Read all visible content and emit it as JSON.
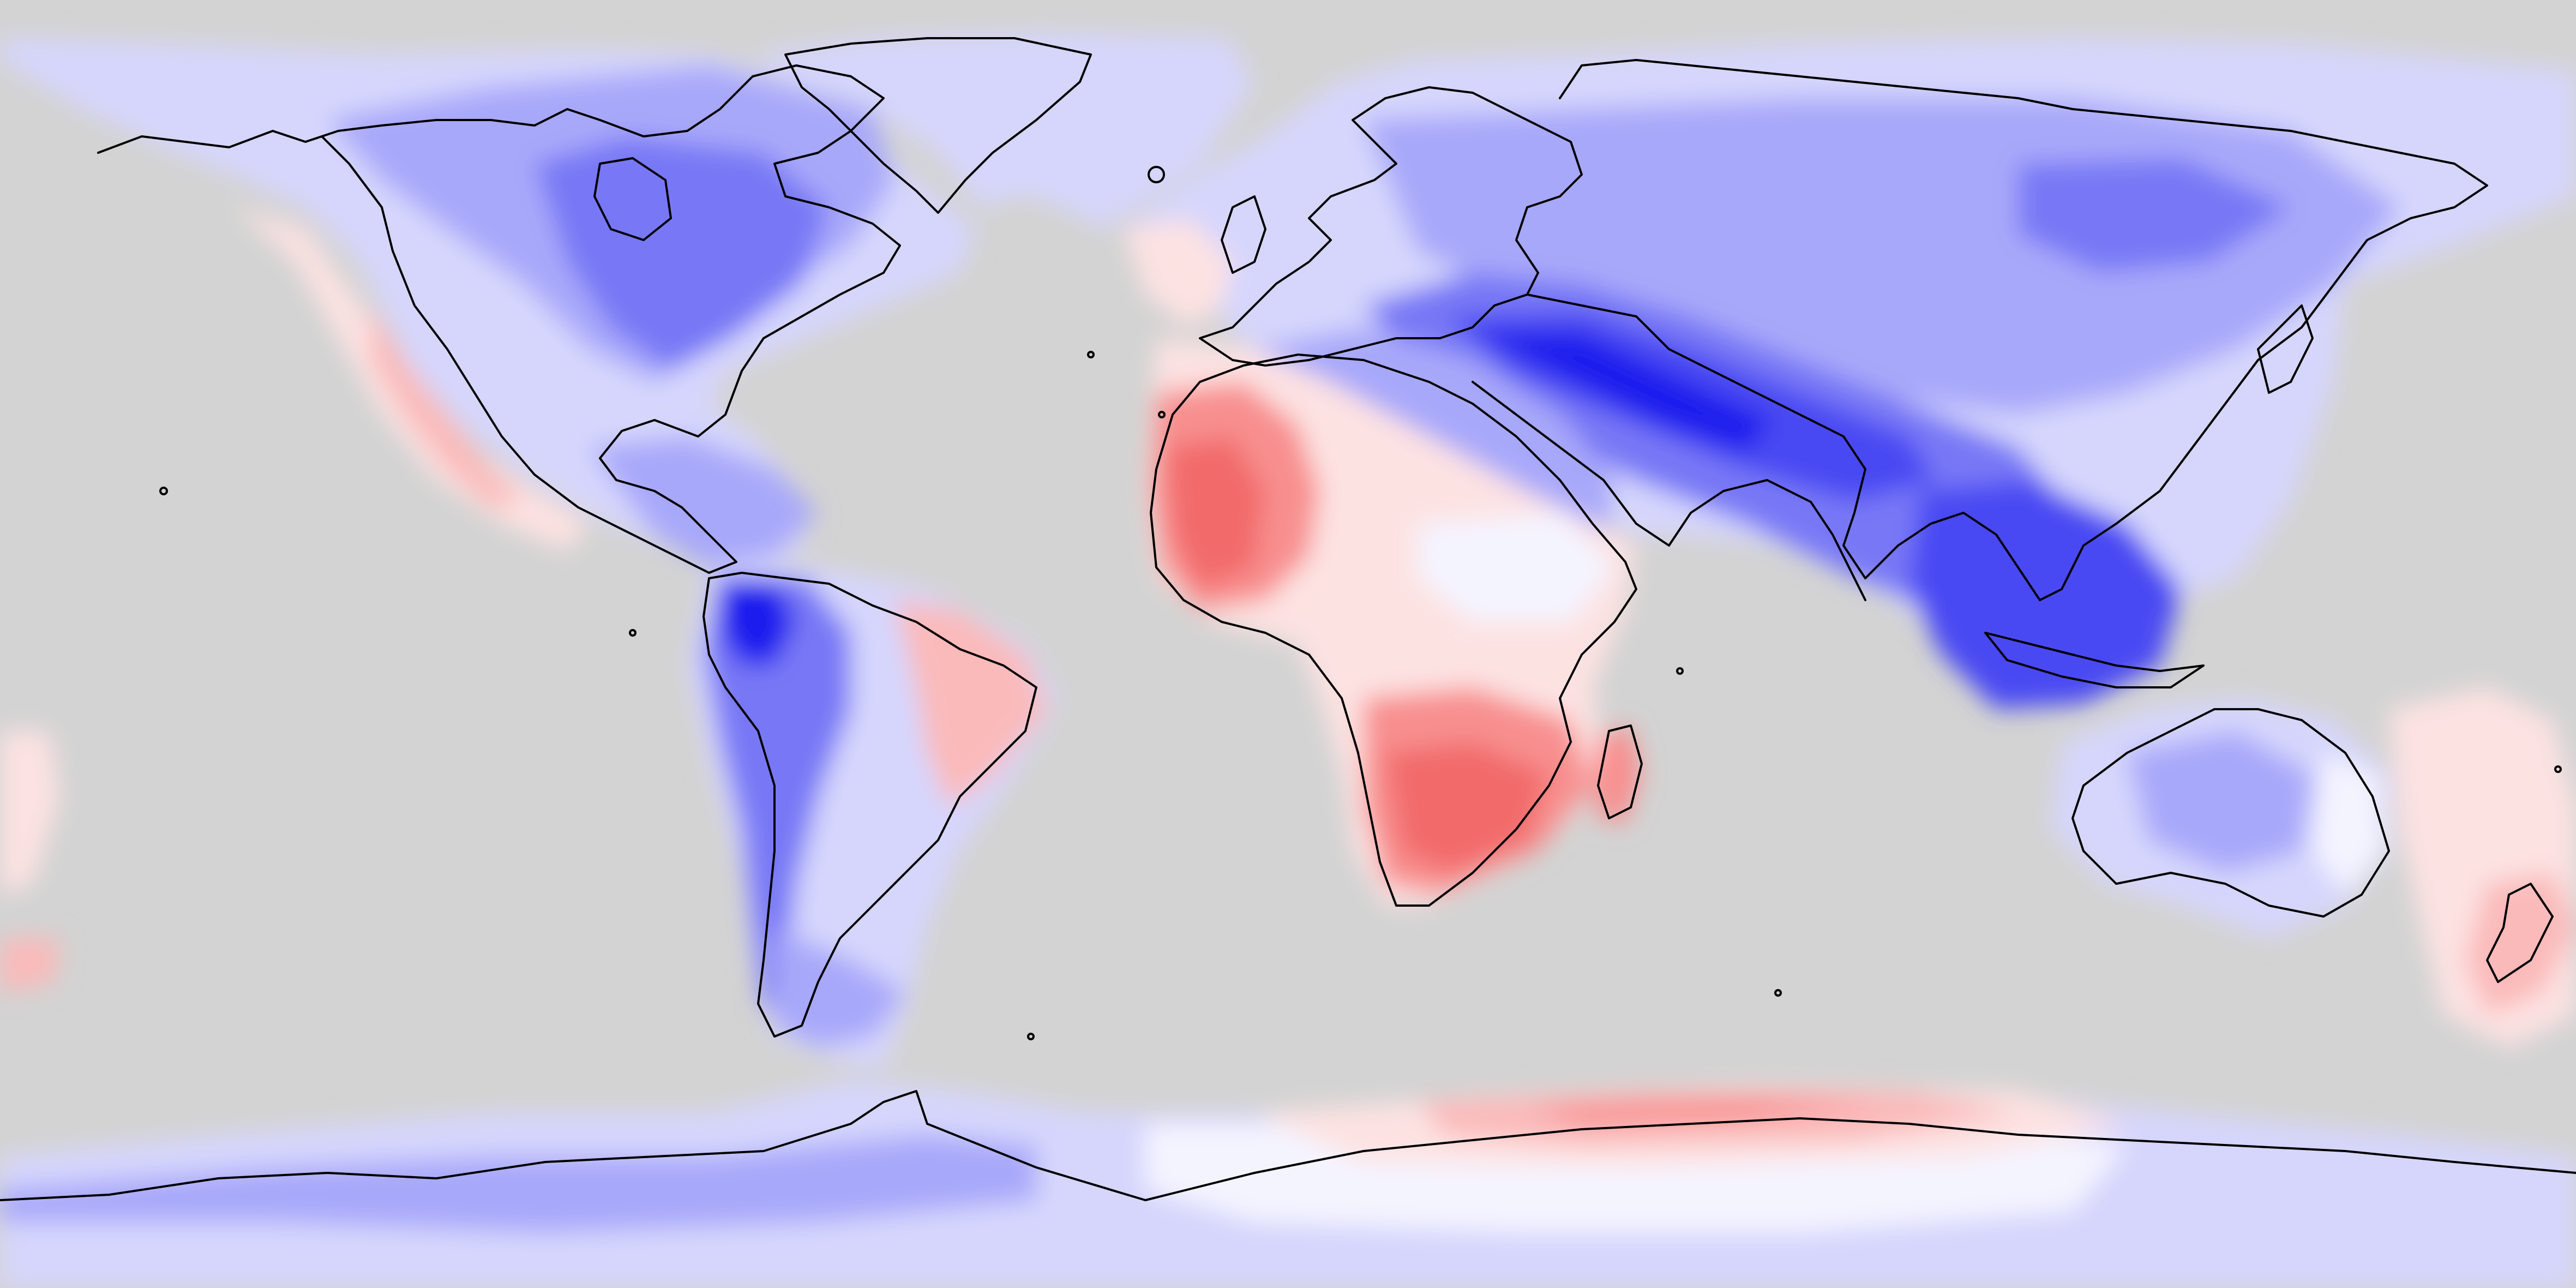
{
  "map": {
    "projection": "equirectangular",
    "extent": {
      "lon": [
        -180,
        180
      ],
      "lat": [
        -90,
        90
      ]
    },
    "central_longitude": 0,
    "ocean_color": "#d3d3d3",
    "coastline_color": "#000000",
    "has_title": false,
    "has_colorbar": false,
    "colormap": {
      "name": "bwr",
      "levels": [
        {
          "name": "strong-negative",
          "color": "#1f1fee"
        },
        {
          "name": "negative-3",
          "color": "#4848f3"
        },
        {
          "name": "negative-2",
          "color": "#7878f6"
        },
        {
          "name": "negative-1",
          "color": "#a8a8fa"
        },
        {
          "name": "weak-negative",
          "color": "#d6d6fd"
        },
        {
          "name": "near-zero",
          "color": "#f4f4ff"
        },
        {
          "name": "weak-positive",
          "color": "#fde2e2"
        },
        {
          "name": "positive-1",
          "color": "#fbbaba"
        },
        {
          "name": "positive-2",
          "color": "#f88f8f"
        },
        {
          "name": "positive-3",
          "color": "#f26a6a"
        }
      ]
    },
    "regions": [
      {
        "name": "north-america-interior",
        "sign": "negative",
        "level": "negative-2"
      },
      {
        "name": "north-america-west-coast",
        "sign": "positive",
        "level": "weak-positive"
      },
      {
        "name": "greenland",
        "sign": "negative",
        "level": "weak-negative"
      },
      {
        "name": "northern-south-america",
        "sign": "negative",
        "level": "strong-negative"
      },
      {
        "name": "eastern-brazil",
        "sign": "positive",
        "level": "positive-1"
      },
      {
        "name": "west-africa",
        "sign": "positive",
        "level": "positive-3"
      },
      {
        "name": "southern-africa",
        "sign": "positive",
        "level": "positive-3"
      },
      {
        "name": "central-asia-tibet",
        "sign": "negative",
        "level": "strong-negative"
      },
      {
        "name": "southeast-asia",
        "sign": "negative",
        "level": "negative-3"
      },
      {
        "name": "australia",
        "sign": "negative",
        "level": "weak-negative"
      },
      {
        "name": "new-zealand-southwest-pacific",
        "sign": "positive",
        "level": "weak-positive"
      },
      {
        "name": "east-antarctica-coast",
        "sign": "positive",
        "level": "positive-1"
      },
      {
        "name": "west-antarctica",
        "sign": "negative",
        "level": "negative-1"
      }
    ]
  }
}
